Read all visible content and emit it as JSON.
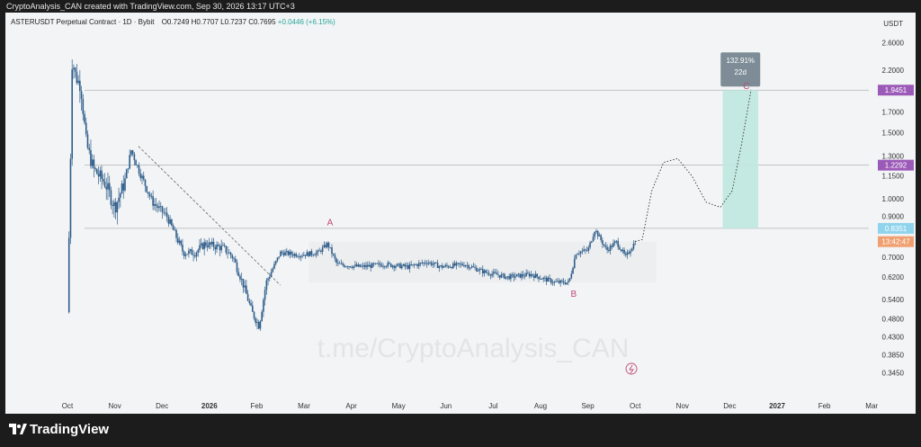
{
  "caption": "CryptoAnalysis_CAN created with TradingView.com, Sep 30, 2026 13:17 UTC+3",
  "symbol_title": "ASTERUSDT Perpetual Contract · 1D · Bybit",
  "ohlc": {
    "o": "O0.7249",
    "h": "H0.7707",
    "l": "L0.7237",
    "c": "C0.7695",
    "change": "+0.0446 (+6.15%)"
  },
  "currency": "USDT",
  "watermark": "t.me/CryptoAnalysis_CAN",
  "brand": "TradingView",
  "colors": {
    "candle": "#2e5d8a",
    "target_box": "#bfe8e0",
    "tag_purple": "#9c5ab8",
    "tag_blue": "#8fd3ec",
    "tag_orange": "#f0a070",
    "hline": "#b0b3b8",
    "wave_label": "#c04a76"
  },
  "chart_data": {
    "type": "candlestick",
    "y_scale": "log",
    "ylim": [
      0.3,
      2.8
    ],
    "y_ticks": [
      "2.6000",
      "2.2000",
      "1.7000",
      "1.5000",
      "1.3000",
      "1.1500",
      "1.0000",
      "0.9000",
      "0.7000",
      "0.6200",
      "0.5400",
      "0.4800",
      "0.4300",
      "0.3850",
      "0.3450"
    ],
    "y_tick_values": [
      2.6,
      2.2,
      1.7,
      1.5,
      1.3,
      1.15,
      1.0,
      0.9,
      0.7,
      0.62,
      0.54,
      0.48,
      0.43,
      0.385,
      0.345
    ],
    "x_ticks": [
      "Oct",
      "Nov",
      "Dec",
      "2026",
      "Feb",
      "Mar",
      "Apr",
      "May",
      "Jun",
      "Jul",
      "Aug",
      "Sep",
      "Oct",
      "Nov",
      "Dec",
      "2027",
      "Feb",
      "Mar"
    ],
    "x_tick_index": [
      0,
      1,
      2,
      3,
      4,
      5,
      6,
      7,
      8,
      9,
      10,
      11,
      12,
      13,
      14,
      15,
      16,
      17
    ],
    "price_path": [
      [
        0,
        0.5
      ],
      [
        0.05,
        1.0
      ],
      [
        0.1,
        2.35
      ],
      [
        0.18,
        2.1
      ],
      [
        0.28,
        2.0
      ],
      [
        0.4,
        1.4
      ],
      [
        0.55,
        1.2
      ],
      [
        0.8,
        1.1
      ],
      [
        1.0,
        0.95
      ],
      [
        1.2,
        1.1
      ],
      [
        1.35,
        1.35
      ],
      [
        1.5,
        1.2
      ],
      [
        1.8,
        0.98
      ],
      [
        2.1,
        0.9
      ],
      [
        2.45,
        0.72
      ],
      [
        2.7,
        0.72
      ],
      [
        2.9,
        0.76
      ],
      [
        3.3,
        0.74
      ],
      [
        3.5,
        0.7
      ],
      [
        3.7,
        0.6
      ],
      [
        3.9,
        0.5
      ],
      [
        4.05,
        0.46
      ],
      [
        4.2,
        0.6
      ],
      [
        4.5,
        0.72
      ],
      [
        4.9,
        0.71
      ],
      [
        5.3,
        0.72
      ],
      [
        5.5,
        0.76
      ],
      [
        5.7,
        0.67
      ],
      [
        6.2,
        0.66
      ],
      [
        6.7,
        0.67
      ],
      [
        7.2,
        0.66
      ],
      [
        7.6,
        0.68
      ],
      [
        7.9,
        0.66
      ],
      [
        8.4,
        0.67
      ],
      [
        8.8,
        0.64
      ],
      [
        9.3,
        0.62
      ],
      [
        9.8,
        0.63
      ],
      [
        10.3,
        0.6
      ],
      [
        10.6,
        0.6
      ],
      [
        10.75,
        0.72
      ],
      [
        11.0,
        0.73
      ],
      [
        11.15,
        0.83
      ],
      [
        11.4,
        0.73
      ],
      [
        11.6,
        0.77
      ],
      [
        11.8,
        0.7
      ],
      [
        12.0,
        0.77
      ]
    ],
    "projected_path": [
      [
        12.0,
        0.77
      ],
      [
        12.15,
        0.78
      ],
      [
        12.35,
        1.05
      ],
      [
        12.6,
        1.25
      ],
      [
        12.9,
        1.28
      ],
      [
        13.2,
        1.15
      ],
      [
        13.5,
        0.98
      ],
      [
        13.8,
        0.95
      ],
      [
        14.05,
        1.05
      ],
      [
        14.25,
        1.4
      ],
      [
        14.45,
        1.95
      ]
    ],
    "horizontal_levels": [
      1.9451,
      1.2292,
      0.8351
    ],
    "price_tags": [
      {
        "label": "1.9451",
        "value": 1.9451,
        "color": "#9c5ab8"
      },
      {
        "label": "1.2292",
        "value": 1.2292,
        "color": "#9c5ab8"
      },
      {
        "label": "0.8351",
        "value": 0.8351,
        "color": "#8fd3ec"
      },
      {
        "label": "13:42:47",
        "value": 0.77,
        "color": "#f0a070"
      }
    ],
    "target_box": {
      "x_start": 13.85,
      "x_end": 14.6,
      "y_low": 0.8351,
      "y_high": 1.9451,
      "percent": "132.91%",
      "duration": "22d"
    },
    "trendline": {
      "x1": 1.5,
      "y1": 1.38,
      "x2": 4.5,
      "y2": 0.59
    },
    "range_box": {
      "x_start": 5.1,
      "x_end": 12.45,
      "y_low": 0.6,
      "y_high": 0.77
    },
    "wave_labels": [
      {
        "text": "A",
        "x": 5.55,
        "y": 0.85
      },
      {
        "text": "B",
        "x": 10.7,
        "y": 0.55
      },
      {
        "text": "C",
        "x": 14.35,
        "y": 1.96
      }
    ]
  }
}
